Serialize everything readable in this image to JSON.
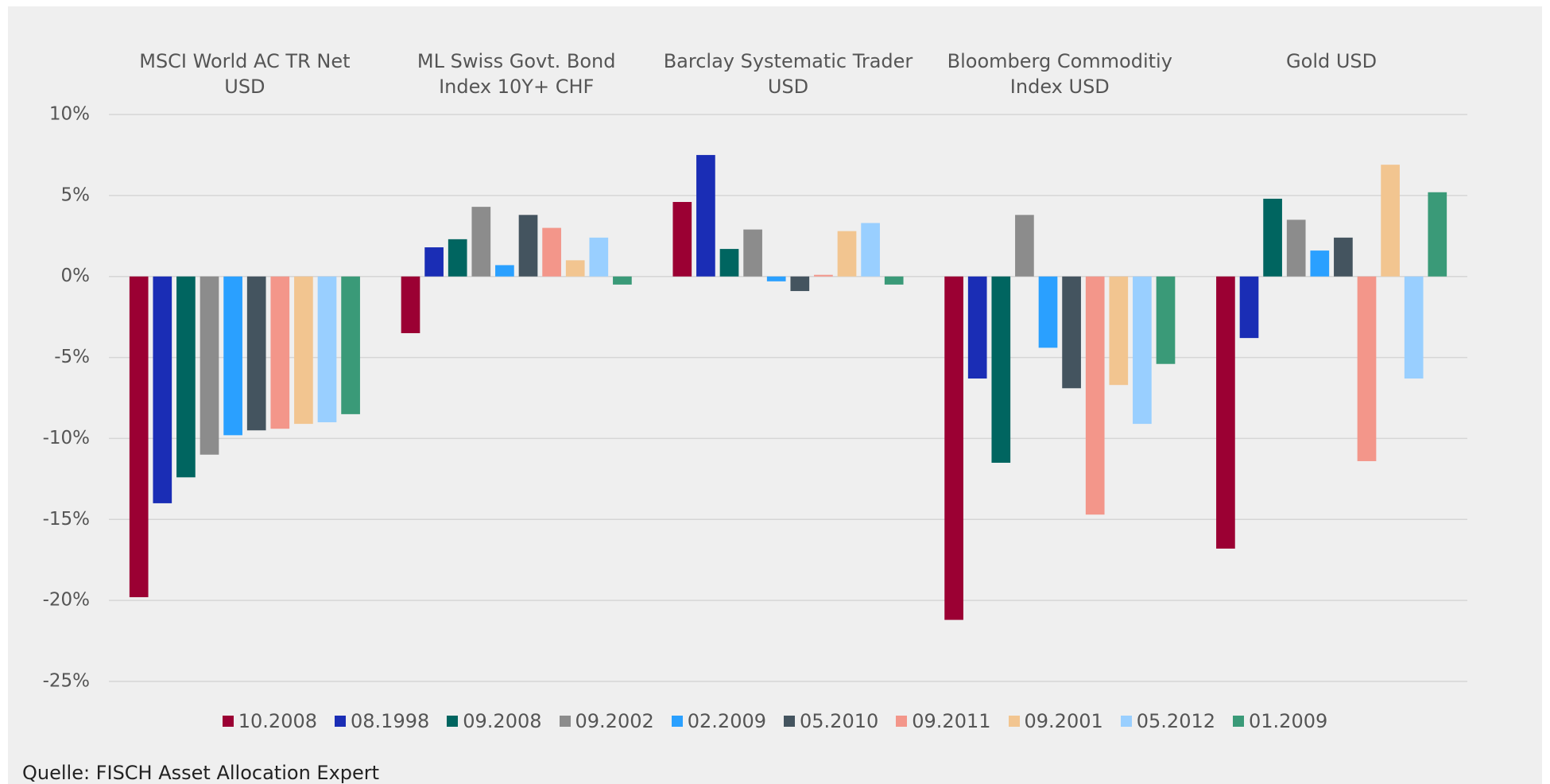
{
  "chart_data": {
    "type": "bar",
    "categories": [
      "MSCI World AC TR Net\nUSD",
      "ML Swiss Govt. Bond\nIndex 10Y+ CHF",
      "Barclay Systematic Trader\nUSD",
      "Bloomberg Commoditiy\nIndex USD",
      "Gold USD"
    ],
    "series": [
      {
        "name": "10.2008",
        "color": "#9b0033",
        "values": [
          -19.8,
          -3.5,
          4.6,
          -21.2,
          -16.8
        ]
      },
      {
        "name": "08.1998",
        "color": "#1a2db5",
        "values": [
          -14.0,
          1.8,
          7.5,
          -6.3,
          -3.8
        ]
      },
      {
        "name": "09.2008",
        "color": "#006560",
        "values": [
          -12.4,
          2.3,
          1.7,
          -11.5,
          4.8
        ]
      },
      {
        "name": "09.2002",
        "color": "#8c8c8c",
        "values": [
          -11.0,
          4.3,
          2.9,
          3.8,
          3.5
        ]
      },
      {
        "name": "02.2009",
        "color": "#2aa0ff",
        "values": [
          -9.8,
          0.7,
          -0.3,
          -4.4,
          1.6
        ]
      },
      {
        "name": "05.2010",
        "color": "#44545f",
        "values": [
          -9.5,
          3.8,
          -0.9,
          -6.9,
          2.4
        ]
      },
      {
        "name": "09.2011",
        "color": "#f3968a",
        "values": [
          -9.4,
          3.0,
          0.1,
          -14.7,
          -11.4
        ]
      },
      {
        "name": "09.2001",
        "color": "#f2c590",
        "values": [
          -9.1,
          1.0,
          2.8,
          -6.7,
          6.9
        ]
      },
      {
        "name": "05.2012",
        "color": "#99cfff",
        "values": [
          -9.0,
          2.4,
          3.3,
          -9.1,
          -6.3
        ]
      },
      {
        "name": "01.2009",
        "color": "#3a9a78",
        "values": [
          -8.5,
          -0.5,
          -0.5,
          -5.4,
          5.2
        ]
      }
    ],
    "ylim": [
      -25,
      10
    ],
    "yticks": [
      {
        "value": -25,
        "label": "-25%"
      },
      {
        "value": -20,
        "label": "-20%"
      },
      {
        "value": -15,
        "label": "-15%"
      },
      {
        "value": -10,
        "label": "-10%"
      },
      {
        "value": -5,
        "label": "-5%"
      },
      {
        "value": 0,
        "label": "0%"
      },
      {
        "value": 5,
        "label": "5%"
      },
      {
        "value": 10,
        "label": "10%"
      }
    ],
    "grid": true,
    "legend": "bottom",
    "source": "Quelle: FISCH Asset Allocation Expert"
  }
}
